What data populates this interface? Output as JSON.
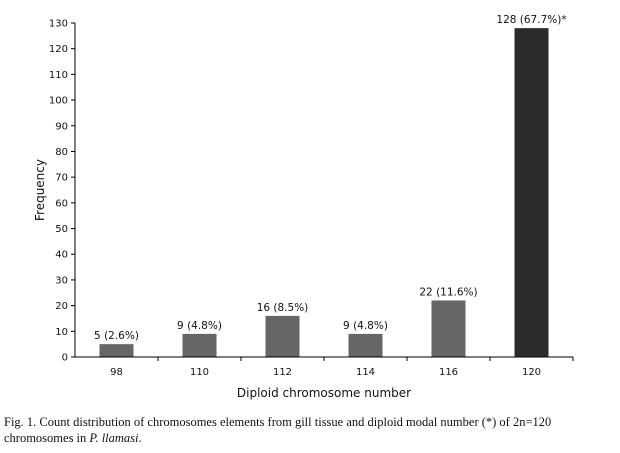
{
  "chart_data": {
    "type": "bar",
    "categories": [
      "98",
      "110",
      "112",
      "114",
      "116",
      "120"
    ],
    "values": [
      5,
      9,
      16,
      9,
      22,
      128
    ],
    "data_labels": [
      "5 (2.6%)",
      "9 (4.8%)",
      "16 (8.5%)",
      "9 (4.8%)",
      "22 (11.6%)",
      "128 (67.7%)*"
    ],
    "highlight_index": 5,
    "colors": {
      "bar": "#666666",
      "highlight": "#2b2b2b",
      "axis": "#000000",
      "text": "#111111"
    },
    "xlabel": "Diploid chromosome number",
    "ylabel": "Frequency",
    "ylim": [
      0,
      130
    ],
    "yticks": [
      0,
      10,
      20,
      30,
      40,
      50,
      60,
      70,
      80,
      90,
      100,
      110,
      120,
      130
    ],
    "grid": false,
    "legend": "none"
  },
  "caption": {
    "text_main": "Fig. 1. Count distribution of chromosomes elements from gill tissue and diploid modal number (*) of 2n=120 chromosomes in ",
    "text_italic": "P. llamasi",
    "text_end": "."
  }
}
